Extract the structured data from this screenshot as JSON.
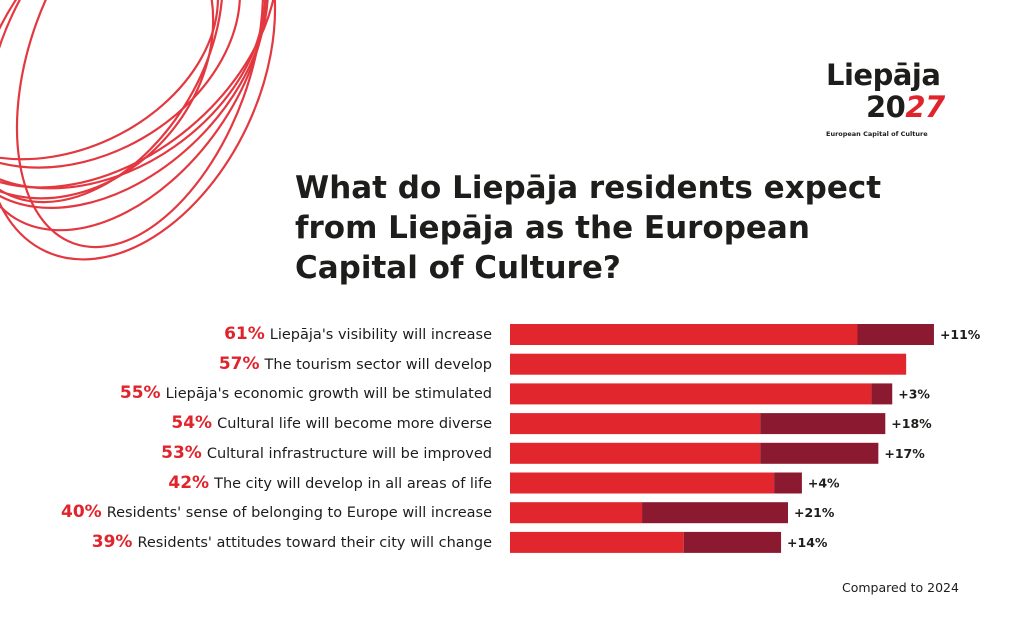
{
  "logo": {
    "name": "Liepāja",
    "year_black": "20",
    "year_red": "27",
    "tagline": "European Capital of Culture"
  },
  "colors": {
    "current": "#e1262d",
    "change": "#8b1a30",
    "text": "#1d1d1b"
  },
  "footnote": "Compared to 2024",
  "chart_data": {
    "type": "bar",
    "orientation": "horizontal",
    "stacked": true,
    "title": "What do Liepāja residents expect from Liepāja as the European Capital of Culture?",
    "categories": [
      "Liepāja's visibility will increase",
      "The tourism sector will develop",
      "Liepāja's economic growth will be stimulated",
      "Cultural life will become more diverse",
      "Cultural infrastructure will be improved",
      "The city will develop in all areas of life",
      "Residents' sense of belonging to Europe will increase",
      "Residents' attitudes toward their city will change"
    ],
    "values": [
      61,
      57,
      55,
      54,
      53,
      42,
      40,
      39
    ],
    "value_labels": [
      "61%",
      "57%",
      "55%",
      "54%",
      "53%",
      "42%",
      "40%",
      "39%"
    ],
    "change_vs_2024": [
      11,
      null,
      3,
      18,
      17,
      4,
      21,
      14
    ],
    "change_labels": [
      "+11%",
      "",
      "+3%",
      "+18%",
      "+17%",
      "+4%",
      "+21%",
      "+14%"
    ],
    "grid": false
  }
}
